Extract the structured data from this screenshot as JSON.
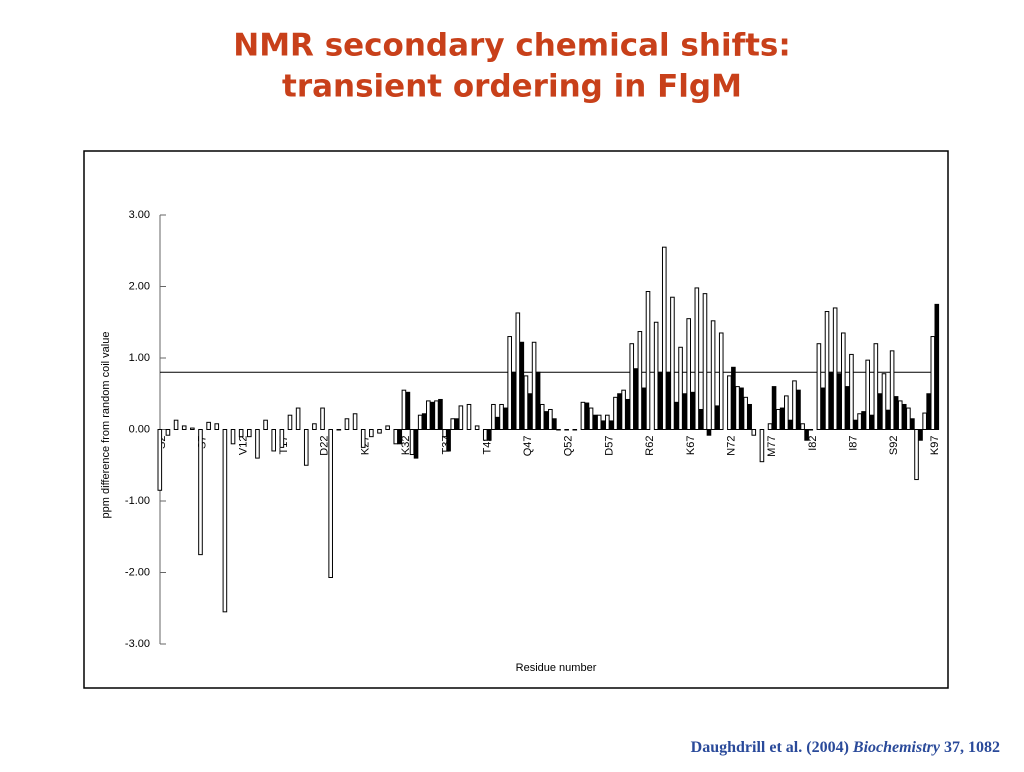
{
  "title": [
    "NMR secondary chemical shifts:",
    "transient ordering in FlgM"
  ],
  "citation": {
    "authors": "Daughdrill et al. (2004)",
    "journal": "Biochemistry",
    "ref": "37, 1082"
  },
  "chart_data": {
    "type": "bar",
    "ylabel": "ppm difference from random coil value",
    "xlabel": "Residue number",
    "categories": [
      "S2",
      null,
      null,
      null,
      null,
      "S7",
      null,
      null,
      null,
      null,
      "V12",
      null,
      null,
      null,
      null,
      "T17",
      null,
      null,
      null,
      null,
      "D22",
      null,
      null,
      null,
      null,
      "K27",
      null,
      null,
      null,
      null,
      "K32",
      null,
      null,
      null,
      null,
      "T37",
      null,
      null,
      null,
      null,
      "T42",
      null,
      null,
      null,
      null,
      "Q47",
      null,
      null,
      null,
      null,
      "Q52",
      null,
      null,
      null,
      null,
      "D57",
      null,
      null,
      null,
      null,
      "R62",
      null,
      null,
      null,
      null,
      "K67",
      null,
      null,
      null,
      null,
      "N72",
      null,
      null,
      null,
      null,
      "M77",
      null,
      null,
      null,
      null,
      "I82",
      null,
      null,
      null,
      null,
      "I87",
      null,
      null,
      null,
      null,
      "S92",
      null,
      null,
      null,
      null,
      "K97"
    ],
    "series": [
      {
        "color": "#ffffff",
        "values": [
          -0.85,
          -0.08,
          0.13,
          0.05,
          0.02,
          -1.75,
          0.1,
          0.08,
          -2.55,
          -0.2,
          -0.1,
          -0.1,
          -0.4,
          0.13,
          -0.3,
          -0.25,
          0.2,
          0.3,
          -0.5,
          0.08,
          0.3,
          -2.07,
          0,
          0.15,
          0.22,
          -0.25,
          -0.1,
          -0.05,
          0.05,
          -0.2,
          0.55,
          -0.35,
          0.2,
          0.4,
          0.4,
          -0.1,
          0.15,
          0.33,
          0.35,
          0.05,
          -0.15,
          0.35,
          0.35,
          1.3,
          1.63,
          0.75,
          1.22,
          0.35,
          0.28,
          0,
          0,
          0,
          0.38,
          0.3,
          0.2,
          0.2,
          0.45,
          0.55,
          1.2,
          1.37,
          1.93,
          1.5,
          2.55,
          1.85,
          1.15,
          1.55,
          1.98,
          1.9,
          1.52,
          1.35,
          0.75,
          0.6,
          0.45,
          -0.08,
          -0.45,
          0.08,
          0.28,
          0.47,
          0.68,
          0.08,
          0,
          1.2,
          1.65,
          1.7,
          1.35,
          1.05,
          0.22,
          0.97,
          1.2,
          0.78,
          1.1,
          0.4,
          0.3,
          -0.7,
          0.23,
          1.3
        ]
      },
      {
        "color": "#000000",
        "values": [
          null,
          null,
          null,
          null,
          null,
          null,
          null,
          null,
          null,
          null,
          null,
          null,
          null,
          null,
          null,
          null,
          null,
          null,
          null,
          null,
          null,
          null,
          null,
          null,
          null,
          null,
          null,
          null,
          null,
          -0.2,
          0.52,
          -0.4,
          0.22,
          0.38,
          0.42,
          -0.3,
          0.15,
          null,
          null,
          null,
          -0.15,
          0.17,
          0.3,
          0.8,
          1.22,
          0.5,
          0.8,
          0.25,
          0.15,
          null,
          null,
          null,
          0.37,
          0.2,
          0.12,
          0.12,
          0.5,
          0.42,
          0.85,
          0.58,
          null,
          0.8,
          0.8,
          0.38,
          0.5,
          0.52,
          0.28,
          -0.08,
          0.33,
          null,
          0.87,
          0.58,
          0.35,
          null,
          null,
          0.6,
          0.3,
          0.13,
          0.55,
          -0.15,
          null,
          0.58,
          0.8,
          0.78,
          0.6,
          0.13,
          0.25,
          0.2,
          0.5,
          0.27,
          0.46,
          0.35,
          0.15,
          -0.15,
          0.5,
          1.75
        ]
      }
    ],
    "reference_line": 0.8,
    "ylim": [
      -3,
      3
    ],
    "yticks": [
      {
        "value": 3,
        "label": "3.00"
      },
      {
        "value": 2,
        "label": "2.00"
      },
      {
        "value": 1,
        "label": "1.00"
      },
      {
        "value": 0,
        "label": "0.00"
      },
      {
        "value": -1,
        "label": "-1.00"
      },
      {
        "value": -2,
        "label": "-2.00"
      },
      {
        "value": -3,
        "label": "-3.00"
      }
    ]
  }
}
